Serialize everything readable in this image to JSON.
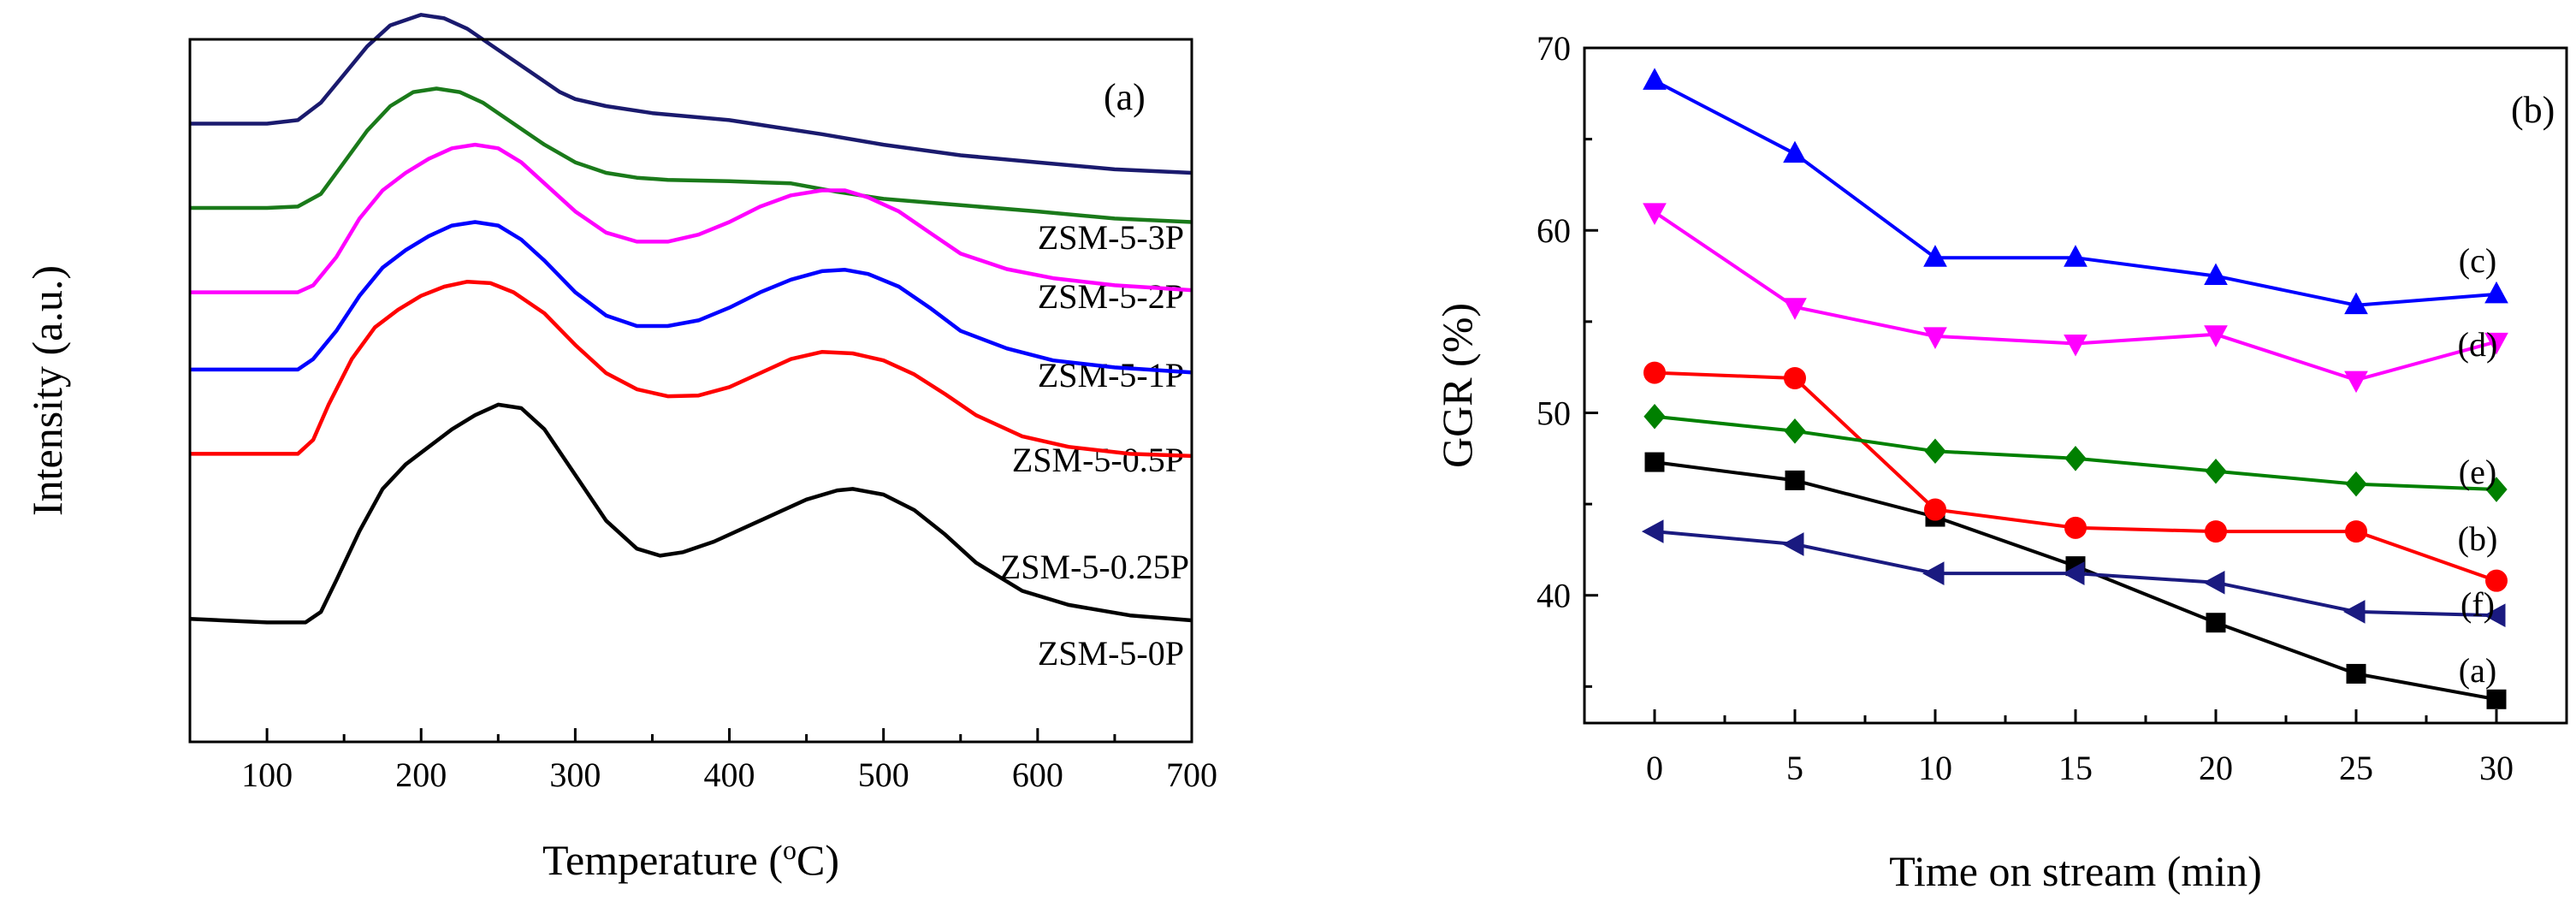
{
  "chart_data": [
    {
      "type": "line",
      "panel_label": "(a)",
      "title": "",
      "xlabel_main": "Temperature (",
      "xlabel_sup": "o",
      "xlabel_unit": "C)",
      "ylabel": "Intensity (a.u.)",
      "xlim": [
        50,
        700
      ],
      "xticks": [
        100,
        200,
        300,
        400,
        500,
        600,
        700
      ],
      "yticks_shown": false,
      "note": "Intensity curves are vertically offset; values are relative (0-100 scale of total panel height)",
      "series": [
        {
          "name": "ZSM-5-3P",
          "color": "#1a1a6e",
          "x": [
            50,
            100,
            120,
            135,
            150,
            165,
            180,
            200,
            215,
            230,
            250,
            270,
            290,
            300,
            320,
            350,
            400,
            430,
            460,
            500,
            550,
            600,
            650,
            700
          ],
          "y": [
            88,
            88,
            88.5,
            91,
            95,
            99,
            102,
            103.5,
            103,
            101.5,
            98.5,
            95.5,
            92.5,
            91.5,
            90.5,
            89.5,
            88.5,
            87.5,
            86.5,
            85,
            83.5,
            82.5,
            81.5,
            81
          ]
        },
        {
          "name": "ZSM-5-2P",
          "color": "#1a7a1a",
          "x": [
            50,
            100,
            120,
            135,
            150,
            165,
            180,
            195,
            210,
            225,
            240,
            260,
            280,
            300,
            320,
            340,
            360,
            400,
            440,
            470,
            500,
            550,
            600,
            650,
            700
          ],
          "y": [
            76,
            76,
            76.2,
            78,
            82.5,
            87,
            90.5,
            92.5,
            93,
            92.5,
            91,
            88,
            85,
            82.5,
            81,
            80.3,
            80,
            79.8,
            79.5,
            78.3,
            77.3,
            76.4,
            75.5,
            74.5,
            74
          ]
        },
        {
          "name": "ZSM-5-1P",
          "color": "#ff00ff",
          "x": [
            50,
            120,
            130,
            145,
            160,
            175,
            190,
            205,
            220,
            235,
            250,
            265,
            280,
            300,
            320,
            340,
            360,
            380,
            400,
            420,
            440,
            460,
            475,
            490,
            510,
            530,
            550,
            580,
            610,
            650,
            700
          ],
          "y": [
            64,
            64,
            65,
            69,
            74.5,
            78.5,
            81,
            83,
            84.5,
            85,
            84.5,
            82.5,
            79.5,
            75.5,
            72.5,
            71.2,
            71.2,
            72.2,
            74,
            76.2,
            77.8,
            78.5,
            78.5,
            77.5,
            75.5,
            72.5,
            69.5,
            67.3,
            66,
            65,
            64.3
          ]
        },
        {
          "name": "ZSM-5-0.5P",
          "color": "#0000ff",
          "x": [
            50,
            120,
            130,
            145,
            160,
            175,
            190,
            205,
            220,
            235,
            250,
            265,
            280,
            300,
            320,
            340,
            360,
            380,
            400,
            420,
            440,
            460,
            475,
            490,
            510,
            530,
            550,
            580,
            610,
            650,
            700
          ],
          "y": [
            53,
            53,
            54.5,
            58.5,
            63.5,
            67.5,
            70,
            72,
            73.5,
            74,
            73.5,
            71.5,
            68.5,
            64,
            60.7,
            59.2,
            59.2,
            60,
            61.8,
            64,
            65.8,
            67,
            67.2,
            66.6,
            64.8,
            61.8,
            58.5,
            56,
            54.3,
            53.3,
            52.6
          ]
        },
        {
          "name": "ZSM-5-0.25P",
          "color": "#ff0000",
          "x": [
            50,
            120,
            130,
            140,
            155,
            170,
            185,
            200,
            215,
            230,
            245,
            260,
            280,
            300,
            320,
            340,
            360,
            380,
            400,
            420,
            440,
            460,
            480,
            500,
            520,
            540,
            560,
            590,
            620,
            660,
            700
          ],
          "y": [
            41,
            41,
            43,
            48,
            54.5,
            59,
            61.5,
            63.5,
            64.8,
            65.5,
            65.3,
            64,
            61,
            56.5,
            52.5,
            50.2,
            49.2,
            49.3,
            50.5,
            52.5,
            54.5,
            55.5,
            55.3,
            54.3,
            52.3,
            49.5,
            46.5,
            43.5,
            42,
            41,
            40.7
          ]
        },
        {
          "name": "ZSM-5-0P",
          "color": "#000000",
          "x": [
            50,
            100,
            125,
            135,
            145,
            160,
            175,
            190,
            205,
            220,
            235,
            250,
            265,
            280,
            300,
            320,
            340,
            355,
            370,
            390,
            410,
            430,
            450,
            470,
            480,
            500,
            520,
            540,
            560,
            590,
            620,
            660,
            700
          ],
          "y": [
            17.5,
            17,
            17,
            18.5,
            23,
            30,
            36,
            39.5,
            42,
            44.5,
            46.5,
            48,
            47.5,
            44.5,
            38,
            31.5,
            27.5,
            26.5,
            27,
            28.5,
            30.5,
            32.5,
            34.5,
            35.8,
            36,
            35.2,
            33,
            29.5,
            25.5,
            21.5,
            19.5,
            18,
            17.3
          ]
        }
      ]
    },
    {
      "type": "line",
      "panel_label": "(b)",
      "title": "",
      "xlabel": "Time on stream (min)",
      "ylabel": "GGR (%)",
      "xlim": [
        -2.5,
        32.5
      ],
      "ylim": [
        33,
        70
      ],
      "xticks": [
        0,
        5,
        10,
        15,
        20,
        25,
        30
      ],
      "yticks": [
        40,
        50,
        60,
        70
      ],
      "series": [
        {
          "name": "(a)",
          "color": "#000000",
          "marker": "square",
          "x": [
            0,
            5,
            10,
            15,
            20,
            25,
            30
          ],
          "y": [
            47.3,
            46.3,
            44.3,
            41.6,
            38.5,
            35.7,
            34.3
          ]
        },
        {
          "name": "(b)",
          "color": "#ff0000",
          "marker": "circle",
          "x": [
            0,
            5,
            10,
            15,
            20,
            25,
            30
          ],
          "y": [
            52.2,
            51.9,
            44.7,
            43.7,
            43.5,
            43.5,
            40.8
          ]
        },
        {
          "name": "(c)",
          "color": "#0000ff",
          "marker": "triangle-up",
          "x": [
            0,
            5,
            10,
            15,
            20,
            25,
            30
          ],
          "y": [
            68.2,
            64.2,
            58.5,
            58.5,
            57.5,
            55.9,
            56.5
          ]
        },
        {
          "name": "(d)",
          "color": "#ff00ff",
          "marker": "triangle-down",
          "x": [
            0,
            5,
            10,
            15,
            20,
            25,
            30
          ],
          "y": [
            61,
            55.8,
            54.2,
            53.8,
            54.3,
            51.8,
            53.9
          ]
        },
        {
          "name": "(e)",
          "color": "#008000",
          "marker": "diamond",
          "x": [
            0,
            5,
            10,
            15,
            20,
            25,
            30
          ],
          "y": [
            49.8,
            49,
            47.9,
            47.5,
            46.8,
            46.1,
            45.8
          ]
        },
        {
          "name": "(f)",
          "color": "#1a1a80",
          "marker": "triangle-left",
          "x": [
            0,
            5,
            10,
            15,
            20,
            25,
            30
          ],
          "y": [
            43.5,
            42.8,
            41.2,
            41.2,
            40.7,
            39.1,
            38.9
          ]
        }
      ]
    }
  ]
}
